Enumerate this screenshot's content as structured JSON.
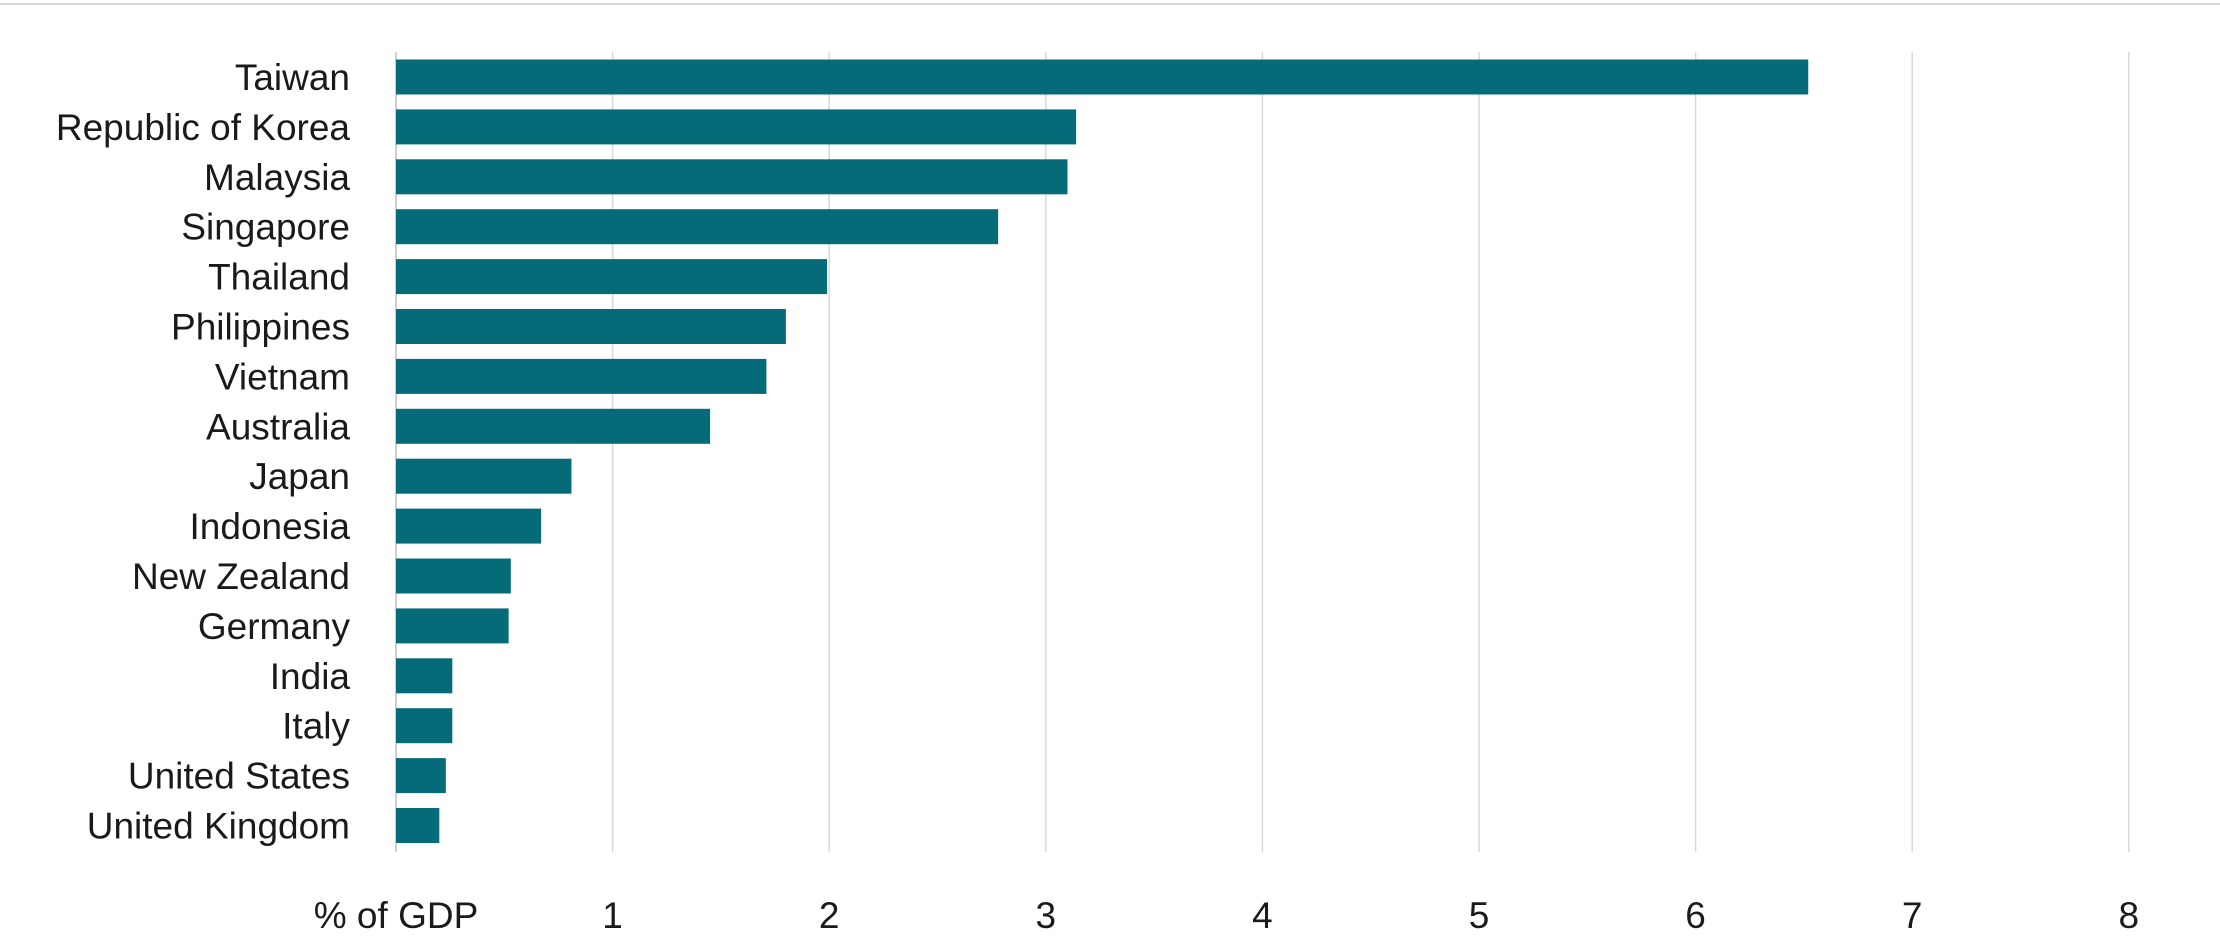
{
  "chart_data": {
    "type": "bar",
    "orientation": "horizontal",
    "categories": [
      "Taiwan",
      "Republic of Korea",
      "Malaysia",
      "Singapore",
      "Thailand",
      "Philippines",
      "Vietnam",
      "Australia",
      "Japan",
      "Indonesia",
      "New Zealand",
      "Germany",
      "India",
      "Italy",
      "United States",
      "United Kingdom"
    ],
    "values": [
      6.52,
      3.14,
      3.1,
      2.78,
      1.99,
      1.8,
      1.71,
      1.45,
      0.81,
      0.67,
      0.53,
      0.52,
      0.26,
      0.26,
      0.23,
      0.2
    ],
    "title": "",
    "xlabel": "% of GDP",
    "ylabel": "",
    "xlim": [
      0,
      8
    ],
    "x_ticks": [
      "1",
      "2",
      "3",
      "4",
      "5",
      "6",
      "7",
      "8"
    ],
    "grid": true,
    "legend": "none",
    "bar_color": "#066b78"
  }
}
